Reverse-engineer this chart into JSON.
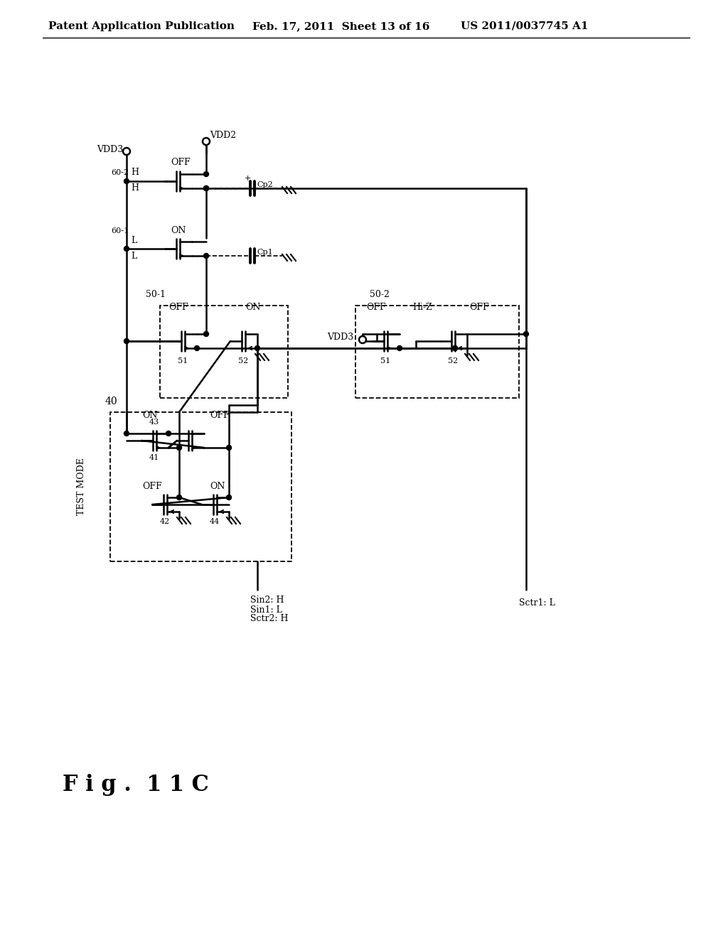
{
  "bg_color": "#ffffff",
  "header_left": "Patent Application Publication",
  "header_mid": "Feb. 17, 2011  Sheet 13 of 16",
  "header_right": "US 2011/0037745 A1",
  "fig_label": "F i g .  1 1 C"
}
